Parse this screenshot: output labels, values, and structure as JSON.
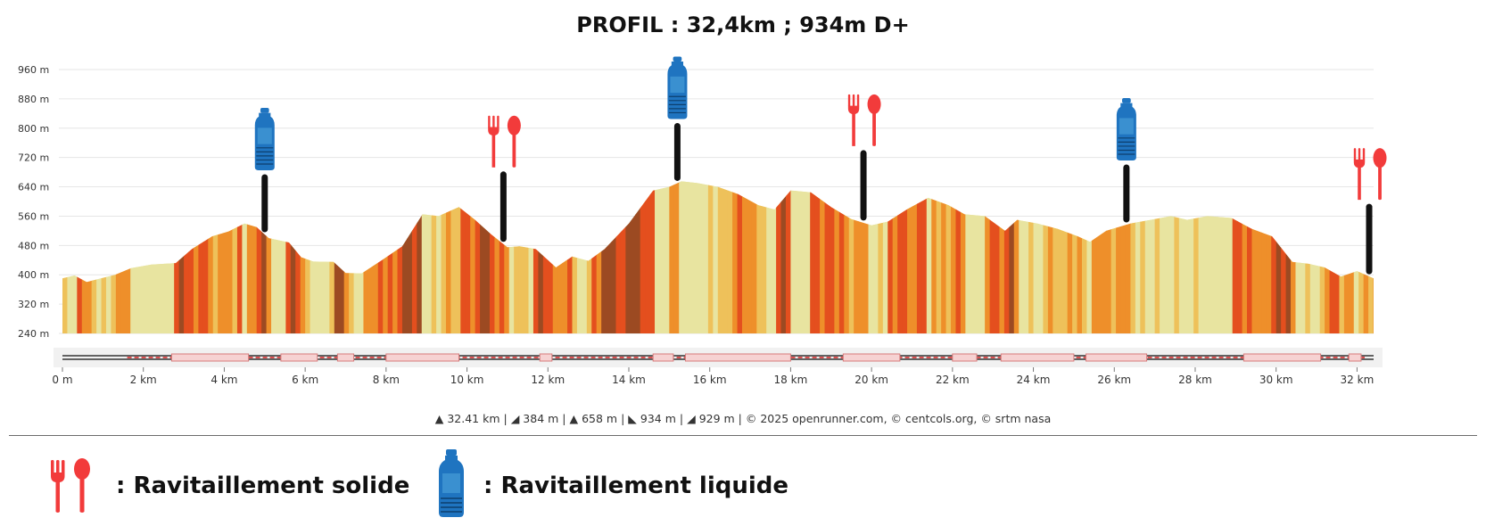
{
  "title": "PROFIL : 32,4km ; 934m D+",
  "chart_data": {
    "type": "area",
    "xlabel": "",
    "ylabel": "",
    "x_unit": "km",
    "y_unit": "m",
    "xlim": [
      0,
      32.41
    ],
    "ylim": [
      240,
      960
    ],
    "y_ticks": [
      240,
      320,
      400,
      480,
      560,
      640,
      720,
      800,
      880,
      960
    ],
    "y_tick_labels": [
      "240 m",
      "320 m",
      "400 m",
      "480 m",
      "560 m",
      "640 m",
      "720 m",
      "800 m",
      "880 m",
      "960 m"
    ],
    "x_ticks": [
      0,
      2,
      4,
      6,
      8,
      10,
      12,
      14,
      16,
      18,
      20,
      22,
      24,
      26,
      28,
      30,
      32
    ],
    "x_tick_labels": [
      "0 m",
      "2 km",
      "4 km",
      "6 km",
      "8 km",
      "10 km",
      "12 km",
      "14 km",
      "16 km",
      "18 km",
      "20 km",
      "22 km",
      "24 km",
      "26 km",
      "28 km",
      "30 km",
      "32 km"
    ],
    "grid": true,
    "profile": {
      "x": [
        0,
        0.3,
        0.6,
        0.8,
        1.3,
        1.7,
        2.2,
        2.8,
        3.2,
        3.7,
        4.1,
        4.5,
        4.8,
        5.1,
        5.6,
        5.9,
        6.2,
        6.7,
        7.0,
        7.4,
        7.9,
        8.4,
        8.9,
        9.3,
        9.8,
        10.2,
        10.6,
        11.0,
        11.3,
        11.7,
        12.0,
        12.2,
        12.6,
        13.0,
        13.4,
        14.0,
        14.6,
        15.0,
        15.3,
        15.7,
        16.2,
        16.7,
        17.2,
        17.6,
        18.0,
        18.5,
        19.0,
        19.5,
        20.0,
        20.4,
        20.9,
        21.4,
        21.9,
        22.3,
        22.8,
        23.3,
        23.6,
        24.1,
        24.6,
        25.1,
        25.4,
        25.8,
        26.4,
        26.9,
        27.4,
        27.8,
        28.3,
        28.9,
        29.4,
        29.9,
        30.4,
        30.8,
        31.2,
        31.6,
        32.0,
        32.41
      ],
      "y": [
        390,
        398,
        380,
        386,
        400,
        418,
        428,
        432,
        470,
        505,
        518,
        540,
        530,
        500,
        488,
        448,
        436,
        435,
        405,
        404,
        440,
        478,
        565,
        560,
        585,
        550,
        510,
        475,
        478,
        470,
        440,
        420,
        450,
        438,
        470,
        540,
        630,
        640,
        655,
        650,
        640,
        620,
        590,
        578,
        630,
        625,
        585,
        552,
        535,
        545,
        580,
        610,
        590,
        565,
        560,
        520,
        550,
        540,
        525,
        505,
        490,
        520,
        540,
        550,
        560,
        550,
        560,
        555,
        525,
        505,
        435,
        430,
        420,
        395,
        410,
        390
      ]
    },
    "aid_stations": [
      {
        "km": 5.0,
        "type": "liquide"
      },
      {
        "km": 10.9,
        "type": "solide"
      },
      {
        "km": 15.2,
        "type": "liquide"
      },
      {
        "km": 19.8,
        "type": "solide"
      },
      {
        "km": 26.3,
        "type": "liquide"
      },
      {
        "km": 32.3,
        "type": "solide"
      }
    ],
    "slope_colors": {
      "flat": "#e8e4a0",
      "gentle": "#eec15a",
      "moderate": "#ee8f2a",
      "steep": "#e44f1e",
      "very_steep": "#9c4a22"
    },
    "credits": {
      "distance": "32.41 km",
      "min_alt": "384 m",
      "max_alt": "658 m",
      "d_plus": "934 m",
      "d_minus": "929 m",
      "copyright": "© 2025 openrunner.com, © centcols.org, © srtm nasa"
    }
  },
  "legend": {
    "solid_label": ": Ravitaillement solide",
    "liquid_label": ": Ravitaillement liquide"
  },
  "colors": {
    "food": "#f23b3b",
    "bottle": "#1f74c0",
    "marker": "#111111",
    "grid": "#e6e6e6",
    "track_dash": "#d83a3a"
  }
}
